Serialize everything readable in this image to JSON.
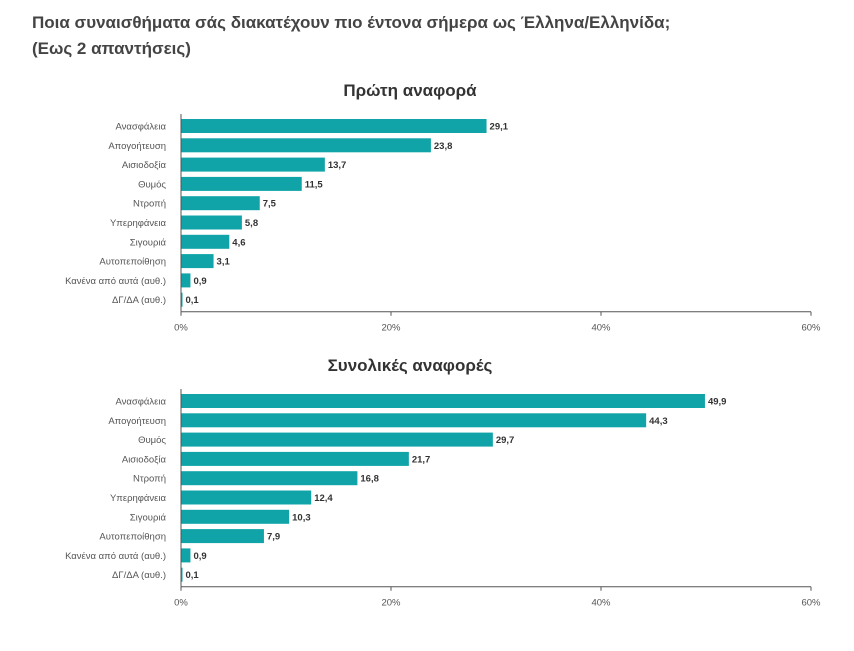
{
  "page": {
    "title_line1": "Ποια συναισθήματα σάς διακατέχουν πιο έντονα σήμερα ως Έλληνα/Ελληνίδα;",
    "title_line2": "(Εως 2 απαντήσεις)"
  },
  "colors": {
    "bar": "#10a3a8",
    "axis": "#555555",
    "text": "#444444"
  },
  "chart_data": [
    {
      "type": "bar",
      "orientation": "horizontal",
      "title": "Πρώτη αναφορά",
      "categories": [
        "Ανασφάλεια",
        "Απογοήτευση",
        "Αισιοδοξία",
        "Θυμός",
        "Ντροπή",
        "Υπερηφάνεια",
        "Σιγουριά",
        "Αυτοπεποίθηση",
        "Κανένα από αυτά (αυθ.)",
        "ΔΓ/ΔΑ (αυθ.)"
      ],
      "values": [
        29.1,
        23.8,
        13.7,
        11.5,
        7.5,
        5.8,
        4.6,
        3.1,
        0.9,
        0.1
      ],
      "value_labels": [
        "29,1",
        "23,8",
        "13,7",
        "11,5",
        "7,5",
        "5,8",
        "4,6",
        "3,1",
        "0,9",
        "0,1"
      ],
      "xlim": [
        0,
        60
      ],
      "ticks": [
        0,
        20,
        40,
        60
      ],
      "tick_labels": [
        "0%",
        "20%",
        "40%",
        "60%"
      ],
      "grid": false
    },
    {
      "type": "bar",
      "orientation": "horizontal",
      "title": "Συνολικές αναφορές",
      "categories": [
        "Ανασφάλεια",
        "Απογοήτευση",
        "Θυμός",
        "Αισιοδοξία",
        "Ντροπή",
        "Υπερηφάνεια",
        "Σιγουριά",
        "Αυτοπεποίθηση",
        "Κανένα από αυτά (αυθ.)",
        "ΔΓ/ΔΑ (αυθ.)"
      ],
      "values": [
        49.9,
        44.3,
        29.7,
        21.7,
        16.8,
        12.4,
        10.3,
        7.9,
        0.9,
        0.1
      ],
      "value_labels": [
        "49,9",
        "44,3",
        "29,7",
        "21,7",
        "16,8",
        "12,4",
        "10,3",
        "7,9",
        "0,9",
        "0,1"
      ],
      "xlim": [
        0,
        60
      ],
      "ticks": [
        0,
        20,
        40,
        60
      ],
      "tick_labels": [
        "0%",
        "20%",
        "40%",
        "60%"
      ],
      "grid": false
    }
  ]
}
